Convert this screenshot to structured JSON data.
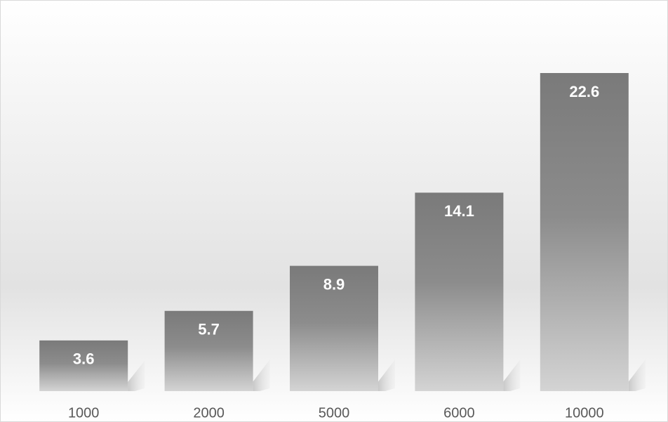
{
  "chart_data": {
    "type": "bar",
    "categories": [
      "1000",
      "2000",
      "5000",
      "6000",
      "10000"
    ],
    "values": [
      3.6,
      5.7,
      8.9,
      14.1,
      22.6
    ]
  }
}
